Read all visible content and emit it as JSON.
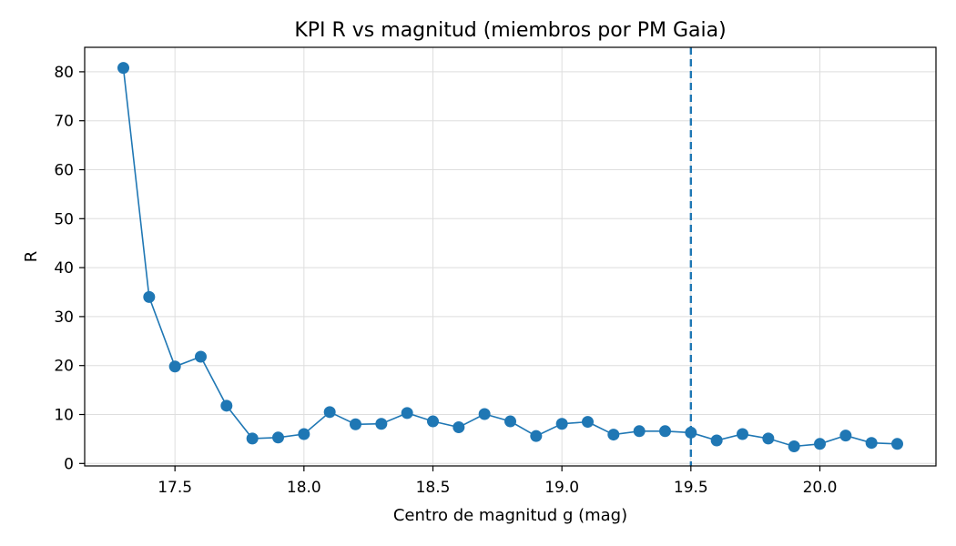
{
  "chart_data": {
    "type": "line",
    "title": "KPI R vs magnitud (miembros por PM Gaia)",
    "xlabel": "Centro de magnitud g (mag)",
    "ylabel": "R",
    "xlim": [
      17.15,
      20.45
    ],
    "ylim": [
      -0.5,
      85
    ],
    "x_ticks": [
      17.5,
      18.0,
      18.5,
      19.0,
      19.5,
      20.0
    ],
    "x_tick_labels": [
      "17.5",
      "18.0",
      "18.5",
      "19.0",
      "19.5",
      "20.0"
    ],
    "y_ticks": [
      0,
      10,
      20,
      30,
      40,
      50,
      60,
      70,
      80
    ],
    "y_tick_labels": [
      "0",
      "10",
      "20",
      "30",
      "40",
      "50",
      "60",
      "70",
      "80"
    ],
    "grid": true,
    "reference_line": {
      "orientation": "vertical",
      "x": 19.5,
      "style": "dashed",
      "color": "#1f77b4"
    },
    "series": [
      {
        "color": "#1f77b4",
        "marker": "circle",
        "x": [
          17.3,
          17.4,
          17.5,
          17.6,
          17.7,
          17.8,
          17.9,
          18.0,
          18.1,
          18.2,
          18.3,
          18.4,
          18.5,
          18.6,
          18.7,
          18.8,
          18.9,
          19.0,
          19.1,
          19.2,
          19.3,
          19.4,
          19.5,
          19.6,
          19.7,
          19.8,
          19.9,
          20.0,
          20.1,
          20.2,
          20.3
        ],
        "y": [
          80.8,
          34.0,
          19.8,
          21.8,
          11.8,
          5.1,
          5.3,
          6.0,
          10.5,
          8.0,
          8.1,
          10.3,
          8.6,
          7.4,
          10.1,
          8.6,
          5.6,
          8.1,
          8.5,
          5.9,
          6.6,
          6.6,
          6.3,
          4.7,
          6.0,
          5.1,
          3.5,
          4.0,
          5.7,
          4.2,
          4.0
        ]
      }
    ]
  }
}
